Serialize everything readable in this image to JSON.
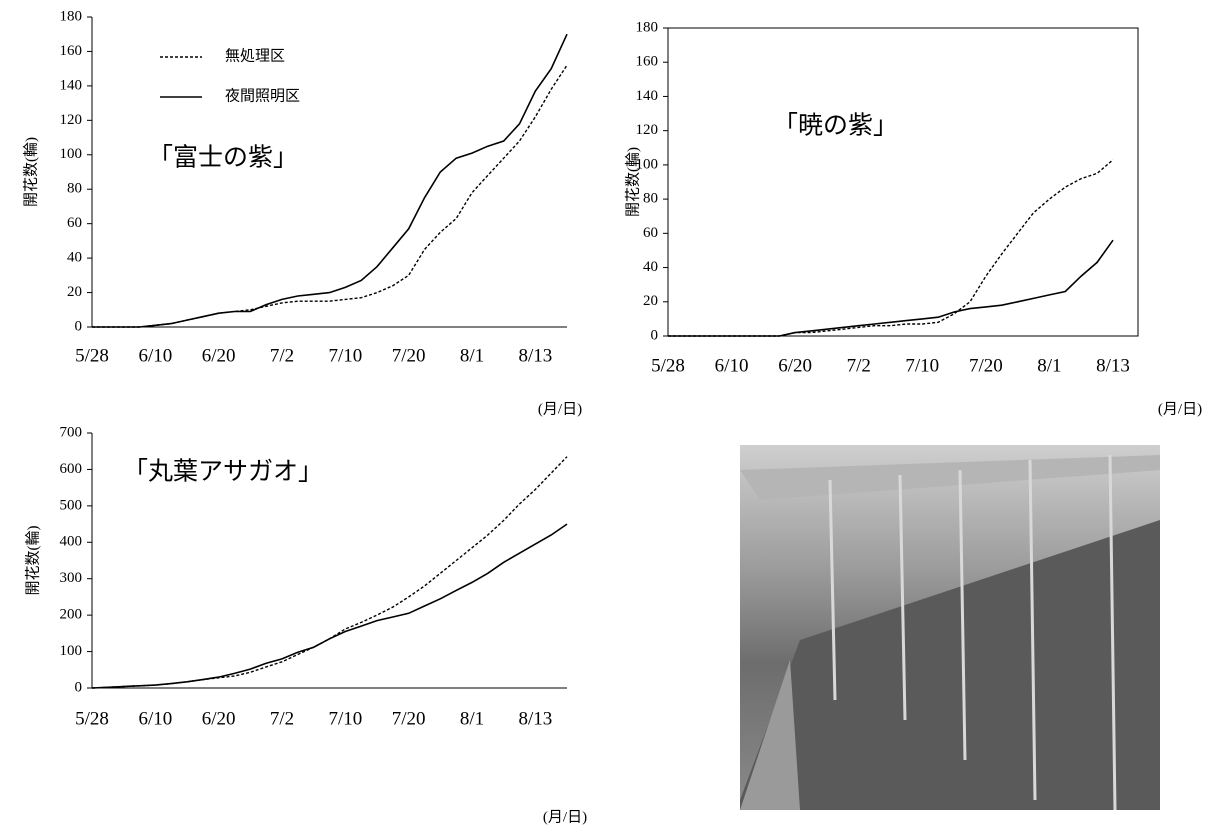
{
  "chart_data": [
    {
      "type": "line",
      "annotation": "「富士の紫」",
      "y_label": "開花数(輪)",
      "x_label": "(月/日)",
      "categories": [
        "5/28",
        null,
        null,
        null,
        "6/10",
        null,
        null,
        null,
        "6/20",
        null,
        null,
        null,
        "7/2",
        null,
        null,
        null,
        "7/10",
        null,
        null,
        null,
        "7/20",
        null,
        null,
        null,
        "8/1",
        null,
        null,
        null,
        "8/13",
        null,
        null
      ],
      "series": [
        {
          "name": "無処理区",
          "color": "#000000",
          "dashed": true,
          "values": [
            0,
            0,
            0,
            0,
            1,
            2,
            4,
            6,
            8,
            9,
            10,
            12,
            14,
            15,
            15,
            15,
            16,
            17,
            20,
            24,
            30,
            45,
            55,
            63,
            78,
            88,
            98,
            108,
            122,
            138,
            152
          ]
        },
        {
          "name": "夜間照明区",
          "color": "#000000",
          "dashed": false,
          "values": [
            0,
            0,
            0,
            0,
            1,
            2,
            4,
            6,
            8,
            9,
            9,
            13,
            16,
            18,
            19,
            20,
            23,
            27,
            35,
            46,
            57,
            75,
            90,
            98,
            101,
            105,
            108,
            118,
            137,
            150,
            170
          ]
        }
      ],
      "ylim": [
        0,
        180
      ],
      "yticks": [
        0,
        20,
        40,
        60,
        80,
        100,
        120,
        140,
        160,
        180
      ],
      "legend": "upper left",
      "frame": false
    },
    {
      "type": "line",
      "annotation": "「暁の紫」",
      "y_label": "開花数(輪)",
      "x_label": "(月/日)",
      "categories": [
        "5/28",
        null,
        null,
        null,
        "6/10",
        null,
        null,
        null,
        "6/20",
        null,
        null,
        null,
        "7/2",
        null,
        null,
        null,
        "7/10",
        null,
        null,
        null,
        "7/20",
        null,
        null,
        null,
        "8/1",
        null,
        null,
        null,
        "8/13",
        null,
        null
      ],
      "series": [
        {
          "color": "#000000",
          "dashed": true,
          "values": [
            0,
            0,
            0,
            0,
            0,
            0,
            0,
            0,
            2,
            2,
            3,
            4,
            5,
            6,
            6,
            7,
            7,
            8,
            13,
            20,
            35,
            48,
            60,
            72,
            80,
            87,
            92,
            95,
            103,
            null,
            null
          ]
        },
        {
          "color": "#000000",
          "dashed": false,
          "values": [
            0,
            0,
            0,
            0,
            0,
            0,
            0,
            0,
            2,
            3,
            4,
            5,
            6,
            7,
            8,
            9,
            10,
            11,
            14,
            16,
            17,
            18,
            20,
            22,
            24,
            26,
            35,
            43,
            56,
            null,
            null
          ]
        }
      ],
      "ylim": [
        0,
        180
      ],
      "yticks": [
        0,
        20,
        40,
        60,
        80,
        100,
        120,
        140,
        160,
        180
      ],
      "frame": true
    },
    {
      "type": "line",
      "annotation": "「丸葉アサガオ」",
      "y_label": "開花数(輪)",
      "x_label": "(月/日)",
      "categories": [
        "5/28",
        null,
        null,
        null,
        "6/10",
        null,
        null,
        null,
        "6/20",
        null,
        null,
        null,
        "7/2",
        null,
        null,
        null,
        "7/10",
        null,
        null,
        null,
        "7/20",
        null,
        null,
        null,
        "8/1",
        null,
        null,
        null,
        "8/13",
        null,
        null
      ],
      "series": [
        {
          "color": "#000000",
          "dashed": true,
          "values": [
            0,
            2,
            4,
            6,
            8,
            12,
            17,
            23,
            28,
            33,
            43,
            58,
            72,
            92,
            112,
            135,
            162,
            180,
            200,
            222,
            250,
            280,
            315,
            350,
            385,
            420,
            460,
            505,
            545,
            590,
            635
          ]
        },
        {
          "color": "#000000",
          "dashed": false,
          "values": [
            0,
            2,
            4,
            6,
            8,
            12,
            17,
            23,
            30,
            40,
            52,
            68,
            80,
            98,
            112,
            135,
            155,
            170,
            185,
            195,
            205,
            225,
            245,
            268,
            290,
            315,
            345,
            370,
            395,
            420,
            450
          ]
        }
      ],
      "ylim": [
        0,
        700
      ],
      "yticks": [
        0,
        100,
        200,
        300,
        400,
        500,
        600,
        700
      ],
      "frame": false
    }
  ]
}
